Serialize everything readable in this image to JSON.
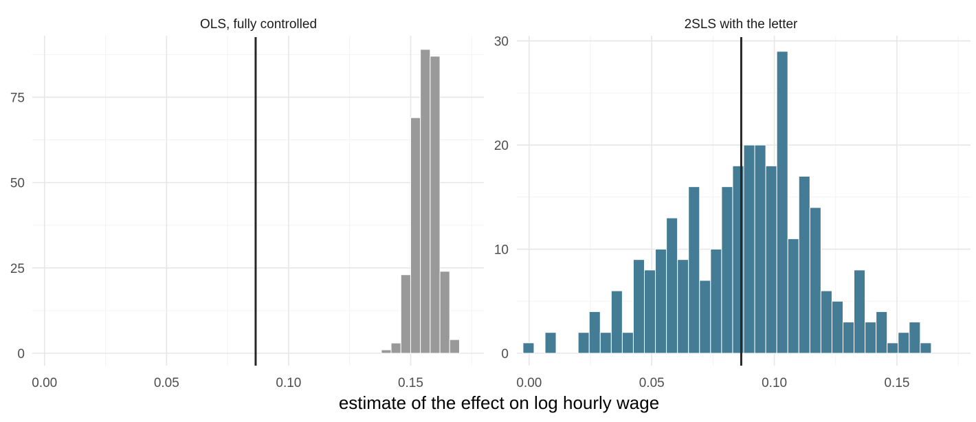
{
  "xlabel": "estimate of the effect on log hourly wage",
  "chart_data": [
    {
      "type": "bar",
      "title": "OLS, fully controlled",
      "xlabel": "estimate of the effect on log hourly wage",
      "ylabel": "",
      "xlim": [
        -0.005,
        0.18
      ],
      "ylim": [
        0,
        93
      ],
      "grid": true,
      "x_ticks": [
        0.0,
        0.05,
        0.1,
        0.15
      ],
      "x_tick_labels": [
        "0.00",
        "0.05",
        "0.10",
        "0.15"
      ],
      "y_ticks": [
        0,
        25,
        50,
        75
      ],
      "y_tick_labels": [
        "0",
        "25",
        "50",
        "75"
      ],
      "bin_width": 0.004,
      "bar_color": "#999999",
      "vline": 0.0865,
      "bins": [
        {
          "x0": 0.138,
          "x1": 0.142,
          "count": 1
        },
        {
          "x0": 0.142,
          "x1": 0.146,
          "count": 3
        },
        {
          "x0": 0.146,
          "x1": 0.15,
          "count": 23
        },
        {
          "x0": 0.15,
          "x1": 0.154,
          "count": 69
        },
        {
          "x0": 0.154,
          "x1": 0.158,
          "count": 89
        },
        {
          "x0": 0.158,
          "x1": 0.162,
          "count": 87
        },
        {
          "x0": 0.162,
          "x1": 0.166,
          "count": 24
        },
        {
          "x0": 0.166,
          "x1": 0.17,
          "count": 4
        }
      ]
    },
    {
      "type": "bar",
      "title": "2SLS with the letter",
      "xlabel": "estimate of the effect on log hourly wage",
      "ylabel": "",
      "xlim": [
        -0.005,
        0.18
      ],
      "ylim": [
        0,
        30.5
      ],
      "grid": true,
      "x_ticks": [
        0.0,
        0.05,
        0.1,
        0.15
      ],
      "x_tick_labels": [
        "0.00",
        "0.05",
        "0.10",
        "0.15"
      ],
      "y_ticks": [
        0,
        10,
        20,
        30
      ],
      "y_tick_labels": [
        "0",
        "10",
        "20",
        "30"
      ],
      "bin_width": 0.0045,
      "bar_color": "#447c96",
      "vline": 0.0865,
      "bins": [
        {
          "x0": -0.0025,
          "x1": 0.002,
          "count": 1
        },
        {
          "x0": 0.002,
          "x1": 0.0065,
          "count": 0
        },
        {
          "x0": 0.0065,
          "x1": 0.011,
          "count": 2
        },
        {
          "x0": 0.011,
          "x1": 0.0155,
          "count": 0
        },
        {
          "x0": 0.0155,
          "x1": 0.02,
          "count": 0
        },
        {
          "x0": 0.02,
          "x1": 0.0245,
          "count": 2
        },
        {
          "x0": 0.0245,
          "x1": 0.029,
          "count": 4
        },
        {
          "x0": 0.029,
          "x1": 0.0335,
          "count": 2
        },
        {
          "x0": 0.0335,
          "x1": 0.038,
          "count": 6
        },
        {
          "x0": 0.038,
          "x1": 0.0425,
          "count": 2
        },
        {
          "x0": 0.0425,
          "x1": 0.047,
          "count": 9
        },
        {
          "x0": 0.047,
          "x1": 0.0515,
          "count": 8
        },
        {
          "x0": 0.0515,
          "x1": 0.056,
          "count": 10
        },
        {
          "x0": 0.056,
          "x1": 0.0605,
          "count": 13
        },
        {
          "x0": 0.0605,
          "x1": 0.065,
          "count": 9
        },
        {
          "x0": 0.065,
          "x1": 0.0695,
          "count": 16
        },
        {
          "x0": 0.0695,
          "x1": 0.074,
          "count": 7
        },
        {
          "x0": 0.074,
          "x1": 0.0785,
          "count": 10
        },
        {
          "x0": 0.0785,
          "x1": 0.083,
          "count": 16
        },
        {
          "x0": 0.083,
          "x1": 0.0875,
          "count": 18
        },
        {
          "x0": 0.0875,
          "x1": 0.092,
          "count": 20
        },
        {
          "x0": 0.092,
          "x1": 0.0965,
          "count": 20
        },
        {
          "x0": 0.0965,
          "x1": 0.101,
          "count": 18
        },
        {
          "x0": 0.101,
          "x1": 0.1055,
          "count": 29
        },
        {
          "x0": 0.1055,
          "x1": 0.11,
          "count": 11
        },
        {
          "x0": 0.11,
          "x1": 0.1145,
          "count": 17
        },
        {
          "x0": 0.1145,
          "x1": 0.119,
          "count": 14
        },
        {
          "x0": 0.119,
          "x1": 0.1235,
          "count": 6
        },
        {
          "x0": 0.1235,
          "x1": 0.128,
          "count": 5
        },
        {
          "x0": 0.128,
          "x1": 0.1325,
          "count": 3
        },
        {
          "x0": 0.1325,
          "x1": 0.137,
          "count": 8
        },
        {
          "x0": 0.137,
          "x1": 0.1415,
          "count": 3
        },
        {
          "x0": 0.1415,
          "x1": 0.146,
          "count": 4
        },
        {
          "x0": 0.146,
          "x1": 0.1505,
          "count": 1
        },
        {
          "x0": 0.1505,
          "x1": 0.155,
          "count": 2
        },
        {
          "x0": 0.155,
          "x1": 0.1595,
          "count": 3
        },
        {
          "x0": 0.1595,
          "x1": 0.164,
          "count": 1
        }
      ]
    }
  ]
}
